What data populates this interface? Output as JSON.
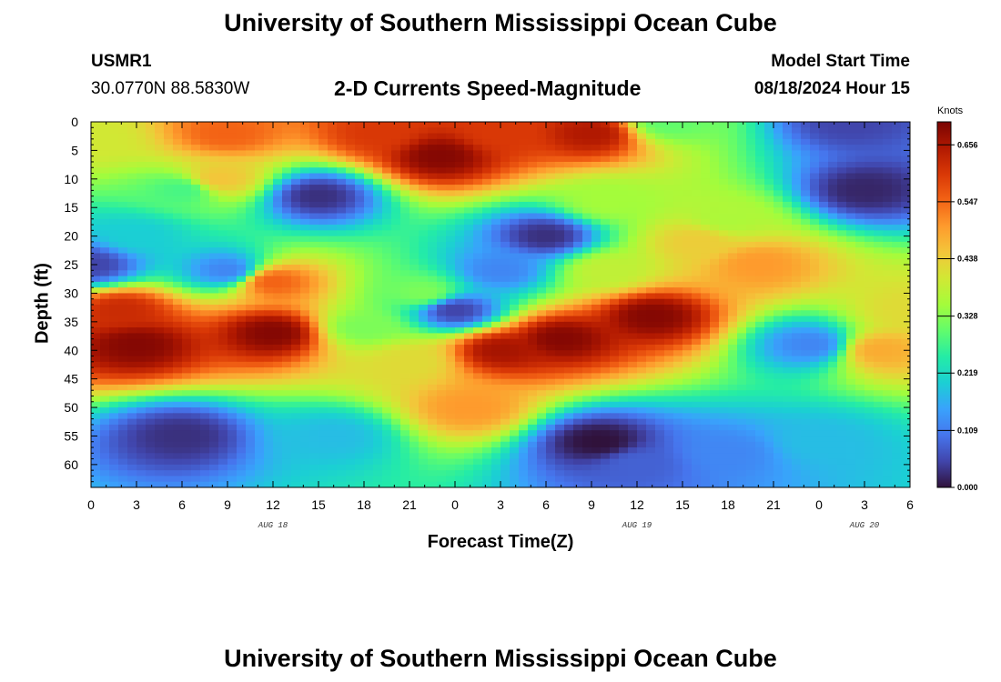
{
  "header": {
    "title": "University of Southern Mississippi Ocean Cube",
    "station": "USMR1",
    "coords": "30.0770N  88.5830W",
    "subtitle": "2-D Currents Speed-Magnitude",
    "model_label": "Model Start Time",
    "model_time": "08/18/2024 Hour 15"
  },
  "footer": {
    "title": "University of Southern Mississippi Ocean Cube"
  },
  "chart_data": {
    "type": "heatmap",
    "xlabel": "Forecast Time(Z)",
    "ylabel": "Depth (ft)",
    "x_tick_labels": [
      "0",
      "3",
      "6",
      "9",
      "12",
      "15",
      "18",
      "21",
      "0",
      "3",
      "6",
      "9",
      "12",
      "15",
      "18",
      "21",
      "0",
      "3",
      "6"
    ],
    "x_date_labels": [
      {
        "text": "AUG 18",
        "tick_index": 4
      },
      {
        "text": "AUG 19",
        "tick_index": 12
      },
      {
        "text": "AUG 20",
        "tick_index": 17
      }
    ],
    "xlim_hours": [
      0,
      54
    ],
    "y_tick_labels": [
      "0",
      "5",
      "10",
      "15",
      "20",
      "25",
      "30",
      "35",
      "40",
      "45",
      "50",
      "55",
      "60"
    ],
    "ylim_ft": [
      0,
      64
    ],
    "y_inverted": true,
    "colorbar": {
      "title": "Knots",
      "ticks": [
        "0.000",
        "0.109",
        "0.219",
        "0.328",
        "0.438",
        "0.547",
        "0.656"
      ],
      "range": [
        0,
        0.7
      ],
      "colors": [
        "#30123b",
        "#4145ab",
        "#4675ed",
        "#39a2fc",
        "#1bcfd4",
        "#24eca6",
        "#61fc6c",
        "#a4fc3b",
        "#d1e834",
        "#f3c63a",
        "#fe9b2d",
        "#f36315",
        "#d93806",
        "#b11901",
        "#7a0403"
      ]
    },
    "speed_features_knots": [
      {
        "time_h": 23,
        "depth_ft": 6,
        "speed": 0.69
      },
      {
        "time_h": 19,
        "depth_ft": 2,
        "speed": 0.6
      },
      {
        "time_h": 27,
        "depth_ft": 2,
        "speed": 0.6
      },
      {
        "time_h": 9,
        "depth_ft": 2,
        "speed": 0.55
      },
      {
        "time_h": 8.5,
        "depth_ft": 10,
        "speed": 0.45
      },
      {
        "time_h": 33,
        "depth_ft": 2,
        "speed": 0.65
      },
      {
        "time_h": 6,
        "depth_ft": 12,
        "speed": 0.28
      },
      {
        "time_h": 34,
        "depth_ft": 14,
        "speed": 0.35
      },
      {
        "time_h": 38,
        "depth_ft": 0,
        "speed": 0.3
      },
      {
        "time_h": 0,
        "depth_ft": 3,
        "speed": 0.4
      },
      {
        "time_h": 22,
        "depth_ft": 30,
        "speed": 0.32
      },
      {
        "time_h": 3,
        "depth_ft": 39,
        "speed": 0.69
      },
      {
        "time_h": 2,
        "depth_ft": 33,
        "speed": 0.62
      },
      {
        "time_h": 12,
        "depth_ft": 37,
        "speed": 0.69
      },
      {
        "time_h": 12,
        "depth_ft": 28,
        "speed": 0.55
      },
      {
        "time_h": 18,
        "depth_ft": 36,
        "speed": 0.32
      },
      {
        "time_h": 21,
        "depth_ft": 42,
        "speed": 0.42
      },
      {
        "time_h": 27,
        "depth_ft": 40,
        "speed": 0.66
      },
      {
        "time_h": 31,
        "depth_ft": 38,
        "speed": 0.69
      },
      {
        "time_h": 37,
        "depth_ft": 34,
        "speed": 0.69
      },
      {
        "time_h": 25,
        "depth_ft": 50,
        "speed": 0.5
      },
      {
        "time_h": 40,
        "depth_ft": 21,
        "speed": 0.44
      },
      {
        "time_h": 44,
        "depth_ft": 25,
        "speed": 0.5
      },
      {
        "time_h": 42,
        "depth_ft": 17,
        "speed": 0.36
      },
      {
        "time_h": 52,
        "depth_ft": 40,
        "speed": 0.48
      },
      {
        "time_h": 54,
        "depth_ft": 33,
        "speed": 0.42
      },
      {
        "time_h": 6,
        "depth_ft": 55,
        "speed": 0.03
      },
      {
        "time_h": 33.5,
        "depth_ft": 56,
        "speed": 0.0
      },
      {
        "time_h": 15,
        "depth_ft": 13,
        "speed": 0.03
      },
      {
        "time_h": 30,
        "depth_ft": 20,
        "speed": 0.03
      },
      {
        "time_h": 24,
        "depth_ft": 33,
        "speed": 0.05
      },
      {
        "time_h": 27,
        "depth_ft": 26,
        "speed": 0.12
      },
      {
        "time_h": 51,
        "depth_ft": 12,
        "speed": 0.02
      },
      {
        "time_h": 50,
        "depth_ft": 0,
        "speed": 0.05
      },
      {
        "time_h": 47.5,
        "depth_ft": 39,
        "speed": 0.12
      },
      {
        "time_h": 0,
        "depth_ft": 25,
        "speed": 0.05
      },
      {
        "time_h": 9,
        "depth_ft": 26,
        "speed": 0.12
      },
      {
        "time_h": 3,
        "depth_ft": 20,
        "speed": 0.2
      },
      {
        "time_h": 42,
        "depth_ft": 58,
        "speed": 0.12
      },
      {
        "time_h": 36,
        "depth_ft": 60,
        "speed": 0.08
      },
      {
        "time_h": 16,
        "depth_ft": 55,
        "speed": 0.18
      },
      {
        "time_h": 34,
        "depth_ft": 26,
        "speed": 0.38
      },
      {
        "time_h": 48,
        "depth_ft": 56,
        "speed": 0.18
      }
    ]
  }
}
